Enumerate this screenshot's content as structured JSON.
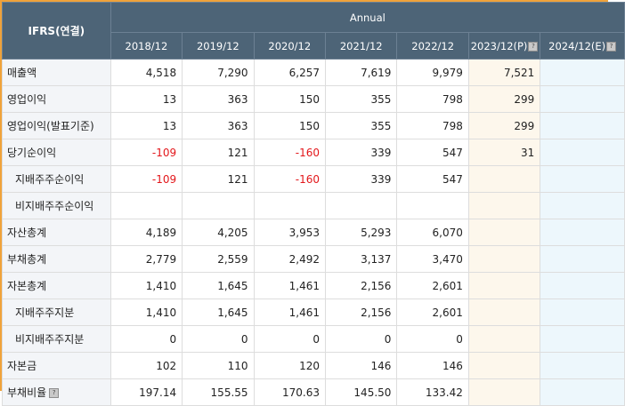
{
  "header": {
    "stub_label": "IFRS(연결)",
    "group_label": "Annual",
    "years": [
      {
        "label": "2018/12",
        "help": false
      },
      {
        "label": "2019/12",
        "help": false
      },
      {
        "label": "2020/12",
        "help": false
      },
      {
        "label": "2021/12",
        "help": false
      },
      {
        "label": "2022/12",
        "help": false
      },
      {
        "label": "2023/12(P)",
        "help": true
      },
      {
        "label": "2024/12(E)",
        "help": true
      }
    ]
  },
  "rows": [
    {
      "label": "매출액",
      "sub": false,
      "values": [
        "4,518",
        "7,290",
        "6,257",
        "7,619",
        "9,979",
        "7,521",
        ""
      ]
    },
    {
      "label": "영업이익",
      "sub": false,
      "values": [
        "13",
        "363",
        "150",
        "355",
        "798",
        "299",
        ""
      ]
    },
    {
      "label": "영업이익(발표기준)",
      "sub": false,
      "values": [
        "13",
        "363",
        "150",
        "355",
        "798",
        "299",
        ""
      ]
    },
    {
      "label": "당기순이익",
      "sub": false,
      "values": [
        "-109",
        "121",
        "-160",
        "339",
        "547",
        "31",
        ""
      ]
    },
    {
      "label": "지배주주순이익",
      "sub": true,
      "values": [
        "-109",
        "121",
        "-160",
        "339",
        "547",
        "",
        ""
      ]
    },
    {
      "label": "비지배주주순이익",
      "sub": true,
      "values": [
        "",
        "",
        "",
        "",
        "",
        "",
        ""
      ]
    },
    {
      "label": "자산총계",
      "sub": false,
      "values": [
        "4,189",
        "4,205",
        "3,953",
        "5,293",
        "6,070",
        "",
        ""
      ]
    },
    {
      "label": "부채총계",
      "sub": false,
      "values": [
        "2,779",
        "2,559",
        "2,492",
        "3,137",
        "3,470",
        "",
        ""
      ]
    },
    {
      "label": "자본총계",
      "sub": false,
      "values": [
        "1,410",
        "1,645",
        "1,461",
        "2,156",
        "2,601",
        "",
        ""
      ]
    },
    {
      "label": "지배주주지분",
      "sub": true,
      "values": [
        "1,410",
        "1,645",
        "1,461",
        "2,156",
        "2,601",
        "",
        ""
      ]
    },
    {
      "label": "비지배주주지분",
      "sub": true,
      "values": [
        "0",
        "0",
        "0",
        "0",
        "0",
        "",
        ""
      ]
    },
    {
      "label": "자본금",
      "sub": false,
      "values": [
        "102",
        "110",
        "120",
        "146",
        "146",
        "",
        ""
      ]
    },
    {
      "label": "부채비율",
      "sub": false,
      "help": true,
      "values": [
        "197.14",
        "155.55",
        "170.63",
        "145.50",
        "133.42",
        "",
        ""
      ]
    }
  ],
  "colors": {
    "header_bg": "#4d6477",
    "label_bg": "#f3f5f8",
    "estimate_bg": "#fdf7ec",
    "estimate2_bg": "#edf7fc",
    "negative": "#e3171b",
    "frame_border": "#f0a23a"
  },
  "icons": {
    "help": "help-icon"
  }
}
